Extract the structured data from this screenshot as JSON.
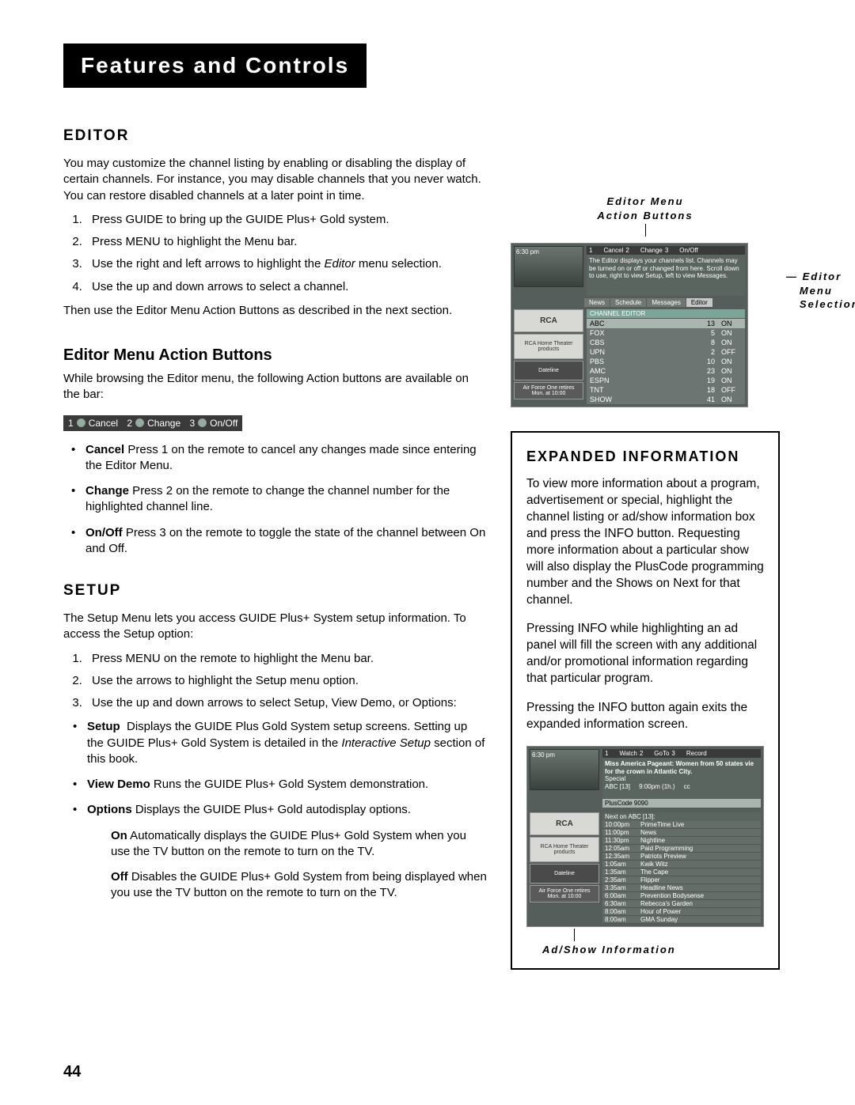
{
  "page_title": "Features and Controls",
  "page_number": "44",
  "editor": {
    "heading": "Editor",
    "intro": "You may customize the channel listing by enabling or disabling the display of certain channels. For instance, you may disable channels that you never watch. You can restore disabled channels at a later point in time.",
    "steps": [
      "Press GUIDE to bring up the GUIDE Plus+ Gold system.",
      "Press MENU to highlight the Menu bar.",
      "Use the right and left arrows to highlight the Editor menu selection.",
      "Use the up and down arrows to select a channel."
    ],
    "after_steps": "Then use the Editor Menu Action Buttons as described in the next section."
  },
  "editor_buttons": {
    "heading": "Editor Menu Action Buttons",
    "intro": "While browsing the Editor menu, the following Action buttons are available on the bar:",
    "bar": {
      "b1_num": "1",
      "b1": "Cancel",
      "b2_num": "2",
      "b2": "Change",
      "b3_num": "3",
      "b3": "On/Off"
    },
    "items": [
      {
        "name": "Cancel",
        "rest": "  Press 1 on the remote to cancel any changes made since entering the Editor Menu."
      },
      {
        "name": "Change",
        "rest": "  Press 2 on the remote to change the channel number for the highlighted channel line."
      },
      {
        "name": "On/Off",
        "rest": "  Press 3 on the remote to toggle the state of the channel between On and Off."
      }
    ]
  },
  "setup": {
    "heading": "Setup",
    "intro": "The Setup Menu lets you access GUIDE Plus+ System setup information. To access the Setup option:",
    "steps": [
      "Press MENU on the remote to highlight the Menu bar.",
      "Use the arrows to highlight the Setup menu option.",
      "Use the up and down arrows to select Setup, View Demo, or Options:"
    ],
    "opts": [
      {
        "name": "Setup",
        "rest": "  Displays the GUIDE Plus Gold System setup screens. Setting up the GUIDE Plus+ Gold System is detailed in the Interactive Setup section of this book."
      },
      {
        "name": "View Demo",
        "rest": "  Runs the GUIDE Plus+ Gold System demonstration."
      },
      {
        "name": "Options",
        "rest": "  Displays the GUIDE Plus+ Gold autodisplay options."
      }
    ],
    "onoff": [
      {
        "name": "On",
        "rest": " Automatically displays the GUIDE Plus+ Gold System when you use the TV button on the remote to turn on the TV."
      },
      {
        "name": "Off",
        "rest": " Disables the GUIDE Plus+ Gold System from being displayed when you use the TV button on the remote to turn on the TV."
      }
    ]
  },
  "fig1": {
    "caption_top": "Editor Menu Action Buttons",
    "caption_side": "Editor Menu Selection",
    "time": "6:30 pm",
    "topbar": {
      "a1n": "1",
      "a1": "Cancel",
      "a2n": "2",
      "a2": "Change",
      "a3n": "3",
      "a3": "On/Off"
    },
    "info": "The Editor displays your channels list. Channels may be turned on or off or changed from here. Scroll down to use, right to view Setup, left to view Messages.",
    "tabs": [
      "News",
      "Schedule",
      "Messages",
      "Editor"
    ],
    "grid_header": "CHANNEL EDITOR",
    "channels": [
      {
        "name": "ABC",
        "num": "13",
        "state": "ON",
        "sel": true
      },
      {
        "name": "FOX",
        "num": "5",
        "state": "ON"
      },
      {
        "name": "CBS",
        "num": "8",
        "state": "ON"
      },
      {
        "name": "UPN",
        "num": "2",
        "state": "OFF"
      },
      {
        "name": "PBS",
        "num": "10",
        "state": "ON"
      },
      {
        "name": "AMC",
        "num": "23",
        "state": "ON"
      },
      {
        "name": "ESPN",
        "num": "19",
        "state": "ON"
      },
      {
        "name": "TNT",
        "num": "18",
        "state": "OFF"
      },
      {
        "name": "SHOW",
        "num": "41",
        "state": "ON"
      }
    ],
    "ads": [
      "RCA",
      "RCA Home Theater products",
      "Dateline",
      "Air Force One retires",
      "Mon. at 10:00"
    ]
  },
  "expanded": {
    "heading": "Expanded Information",
    "p1": "To view more information about a program, advertisement or special, highlight the channel listing or ad/show information box and press the INFO button. Requesting more information about a particular show will also display the PlusCode programming number and the Shows on Next for that channel.",
    "p2": "Pressing INFO while highlighting an ad panel will fill the screen with any additional and/or promotional information regarding that particular program.",
    "p3": "Pressing the INFO button again exits the expanded information screen.",
    "caption": "Ad/Show Information"
  },
  "fig2": {
    "time": "6:30 pm",
    "topbar": {
      "a1n": "1",
      "a1": "Watch",
      "a2n": "2",
      "a2": "GoTo",
      "a3n": "3",
      "a3": "Record"
    },
    "title": "Miss America Pageant: Women from 50 states vie for the crown in Atlantic City.",
    "sub": "Special",
    "chan": "ABC [13]",
    "slot": "9:00pm (1h.)",
    "cc": "cc",
    "plus": "PlusCode  9090",
    "next_hdr": "Next on ABC [13]:",
    "schedule": [
      {
        "t": "10:00pm",
        "s": "PrimeTime Live"
      },
      {
        "t": "11:00pm",
        "s": "News"
      },
      {
        "t": "11:30pm",
        "s": "Nightline"
      },
      {
        "t": "12:05am",
        "s": "Paid Programming"
      },
      {
        "t": "12:35am",
        "s": "Patriots Preview"
      },
      {
        "t": "1:05am",
        "s": "Kwik Witz"
      },
      {
        "t": "1:35am",
        "s": "The Cape"
      },
      {
        "t": "2:35am",
        "s": "Flipper"
      },
      {
        "t": "3:35am",
        "s": "Headline News"
      },
      {
        "t": "6:00am",
        "s": "Prevention Bodysense"
      },
      {
        "t": "6:30am",
        "s": "Rebecca's Garden"
      },
      {
        "t": "8:00am",
        "s": "Hour of Power"
      },
      {
        "t": "8:00am",
        "s": "GMA Sunday"
      }
    ],
    "ads": [
      "RCA",
      "RCA Home Theater products",
      "Dateline",
      "Air Force One retires",
      "Mon. at 10:00"
    ]
  }
}
